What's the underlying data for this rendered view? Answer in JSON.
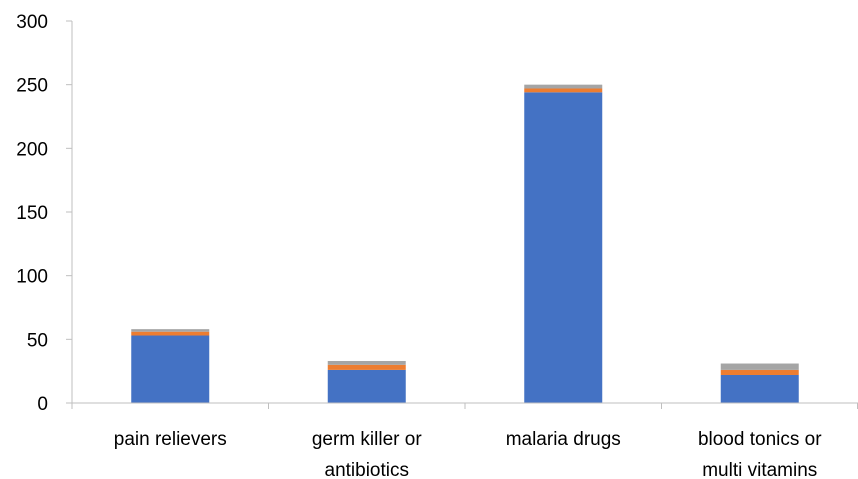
{
  "chart_data": {
    "type": "bar",
    "stacked": true,
    "title": "",
    "xlabel": "",
    "ylabel": "",
    "categories": [
      [
        "pain relievers"
      ],
      [
        "germ killer or",
        "antibiotics"
      ],
      [
        "malaria drugs"
      ],
      [
        "blood tonics or",
        "multi vitamins"
      ]
    ],
    "series": [
      {
        "values": [
          53,
          26,
          244,
          22
        ],
        "color": "#4472c4"
      },
      {
        "values": [
          3,
          4,
          3,
          4
        ],
        "color": "#ed7d31"
      },
      {
        "values": [
          2,
          3,
          3,
          5
        ],
        "color": "#a5a5a5"
      }
    ],
    "ylim": [
      0,
      300
    ],
    "yticks": [
      0,
      50,
      100,
      150,
      200,
      250,
      300
    ],
    "grid": false,
    "legend": "none"
  }
}
